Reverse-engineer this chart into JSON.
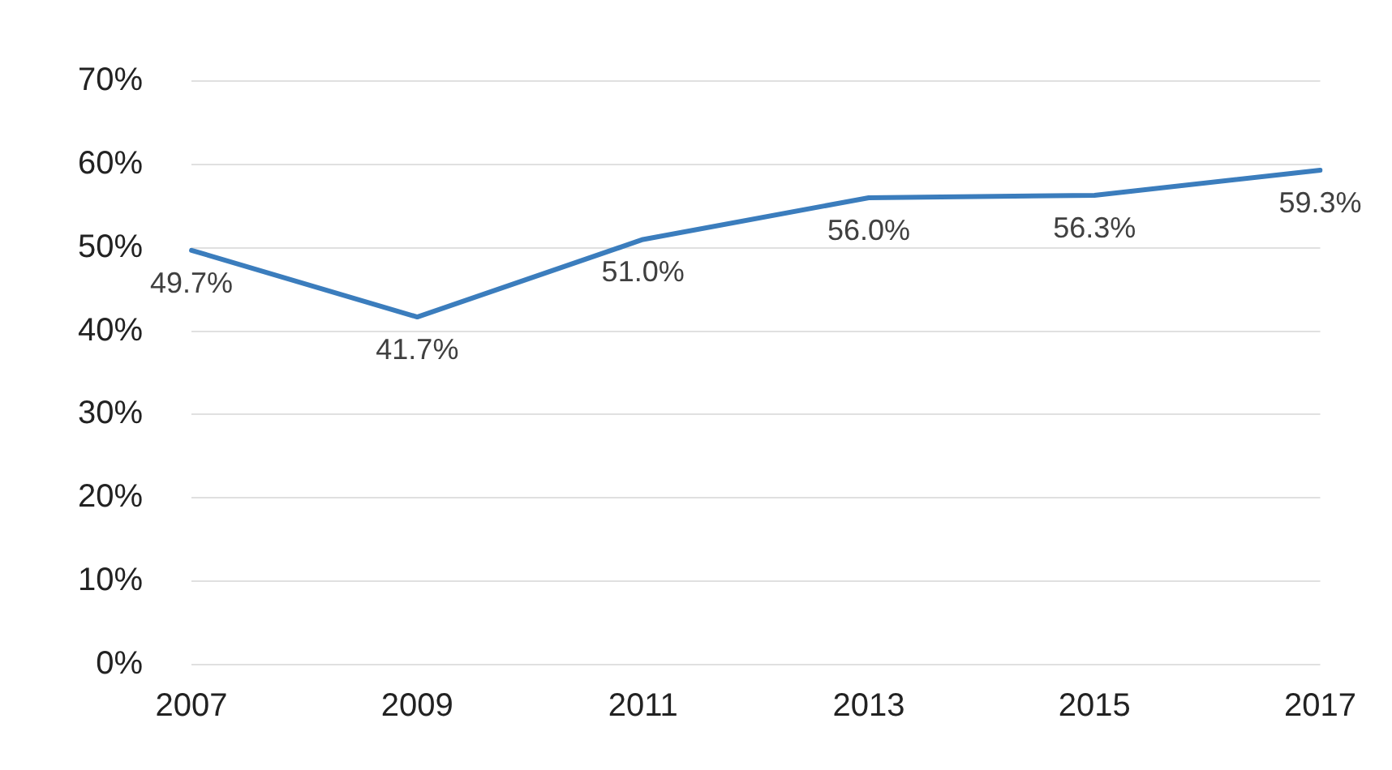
{
  "chart_data": {
    "type": "line",
    "categories": [
      "2007",
      "2009",
      "2011",
      "2013",
      "2015",
      "2017"
    ],
    "series": [
      {
        "color": "#3b7dbd",
        "values": [
          49.7,
          41.7,
          51.0,
          56.0,
          56.3,
          59.3
        ],
        "value_labels": [
          "49.7%",
          "41.7%",
          "51.0%",
          "56.0%",
          "56.3%",
          "59.3%"
        ]
      }
    ],
    "ylim": [
      0,
      70
    ],
    "yticks": [
      {
        "value": 0,
        "label": "0%"
      },
      {
        "value": 10,
        "label": "10%"
      },
      {
        "value": 20,
        "label": "20%"
      },
      {
        "value": 30,
        "label": "30%"
      },
      {
        "value": 40,
        "label": "40%"
      },
      {
        "value": 50,
        "label": "50%"
      },
      {
        "value": 60,
        "label": "60%"
      },
      {
        "value": 70,
        "label": "70%"
      }
    ],
    "grid": "y",
    "marker": "none",
    "line_style": "solid",
    "legend": false
  }
}
